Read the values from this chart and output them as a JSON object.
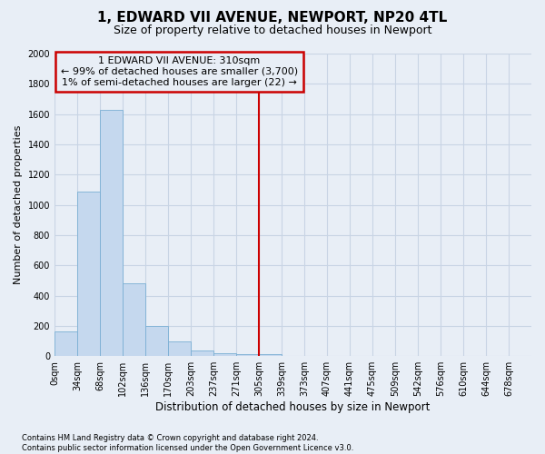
{
  "title": "1, EDWARD VII AVENUE, NEWPORT, NP20 4TL",
  "subtitle": "Size of property relative to detached houses in Newport",
  "xlabel": "Distribution of detached houses by size in Newport",
  "ylabel": "Number of detached properties",
  "bar_labels": [
    "0sqm",
    "34sqm",
    "68sqm",
    "102sqm",
    "136sqm",
    "170sqm",
    "203sqm",
    "237sqm",
    "271sqm",
    "305sqm",
    "339sqm",
    "373sqm",
    "407sqm",
    "441sqm",
    "475sqm",
    "509sqm",
    "542sqm",
    "576sqm",
    "610sqm",
    "644sqm",
    "678sqm"
  ],
  "bar_values": [
    165,
    1090,
    1625,
    480,
    200,
    100,
    35,
    20,
    15,
    15,
    0,
    0,
    0,
    0,
    0,
    0,
    0,
    0,
    0,
    0,
    0
  ],
  "bar_color": "#c5d8ee",
  "bar_edge_color": "#7aafd4",
  "vline_x": 9,
  "vline_color": "#cc0000",
  "annotation_line1": "1 EDWARD VII AVENUE: 310sqm",
  "annotation_line2": "← 99% of detached houses are smaller (3,700)",
  "annotation_line3": "1% of semi-detached houses are larger (22) →",
  "annotation_box_color": "#cc0000",
  "ylim_max": 2000,
  "yticks": [
    0,
    200,
    400,
    600,
    800,
    1000,
    1200,
    1400,
    1600,
    1800,
    2000
  ],
  "grid_color": "#c8d4e4",
  "bg_color": "#e8eef6",
  "footnote_line1": "Contains HM Land Registry data © Crown copyright and database right 2024.",
  "footnote_line2": "Contains public sector information licensed under the Open Government Licence v3.0.",
  "title_fontsize": 11,
  "subtitle_fontsize": 9,
  "axis_label_fontsize": 8.5,
  "ylabel_fontsize": 8,
  "tick_fontsize": 7,
  "annotation_fontsize": 8,
  "footnote_fontsize": 6
}
